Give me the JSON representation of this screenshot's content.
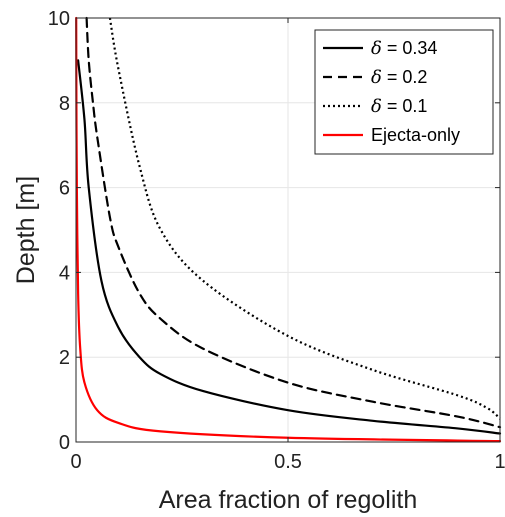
{
  "chart_data": {
    "type": "line",
    "xlabel": "Area fraction of regolith",
    "ylabel": "Depth [m]",
    "xlim": [
      0,
      1
    ],
    "ylim": [
      0,
      10
    ],
    "xticks": [
      0,
      0.5,
      1
    ],
    "xtick_labels": [
      "0",
      "0.5",
      "1"
    ],
    "yticks": [
      0,
      2,
      4,
      6,
      8,
      10
    ],
    "ytick_labels": [
      "0",
      "2",
      "4",
      "6",
      "8",
      "10"
    ],
    "grid": true,
    "legend_position": "top-right",
    "series": [
      {
        "name": "δ = 0.34",
        "legend_symbol": "δ",
        "legend_rest": " = 0.34",
        "color": "#000000",
        "dash": "solid",
        "x": [
          0.005,
          0.02,
          0.03,
          0.06,
          0.1,
          0.15,
          0.2,
          0.3,
          0.5,
          0.7,
          0.9,
          1.0
        ],
        "y": [
          9.0,
          7.6,
          6.0,
          3.8,
          2.7,
          2.0,
          1.6,
          1.2,
          0.75,
          0.5,
          0.32,
          0.2
        ]
      },
      {
        "name": "δ = 0.2",
        "legend_symbol": "δ",
        "legend_rest": " = 0.2",
        "color": "#000000",
        "dash": "dashed",
        "x": [
          0.025,
          0.03,
          0.04,
          0.05,
          0.08,
          0.1,
          0.15,
          0.2,
          0.3,
          0.5,
          0.7,
          0.9,
          1.0
        ],
        "y": [
          10.0,
          9.0,
          8.0,
          7.2,
          5.3,
          4.6,
          3.5,
          2.9,
          2.2,
          1.4,
          0.95,
          0.6,
          0.35
        ]
      },
      {
        "name": "δ = 0.1",
        "legend_symbol": "δ",
        "legend_rest": " = 0.1",
        "color": "#000000",
        "dash": "dotted",
        "x": [
          0.08,
          0.1,
          0.15,
          0.2,
          0.3,
          0.5,
          0.7,
          0.9,
          0.97,
          1.0
        ],
        "y": [
          10.0,
          8.8,
          6.5,
          5.0,
          3.8,
          2.5,
          1.7,
          1.1,
          0.8,
          0.55
        ]
      },
      {
        "name": "Ejecta-only",
        "color": "#ff0000",
        "dash": "solid",
        "x": [
          0.0005,
          0.001,
          0.002,
          0.005,
          0.01,
          0.02,
          0.05,
          0.1,
          0.2,
          0.5,
          1.0
        ],
        "y": [
          10.0,
          8.0,
          6.0,
          3.5,
          2.2,
          1.4,
          0.75,
          0.45,
          0.25,
          0.1,
          0.02
        ]
      }
    ]
  }
}
